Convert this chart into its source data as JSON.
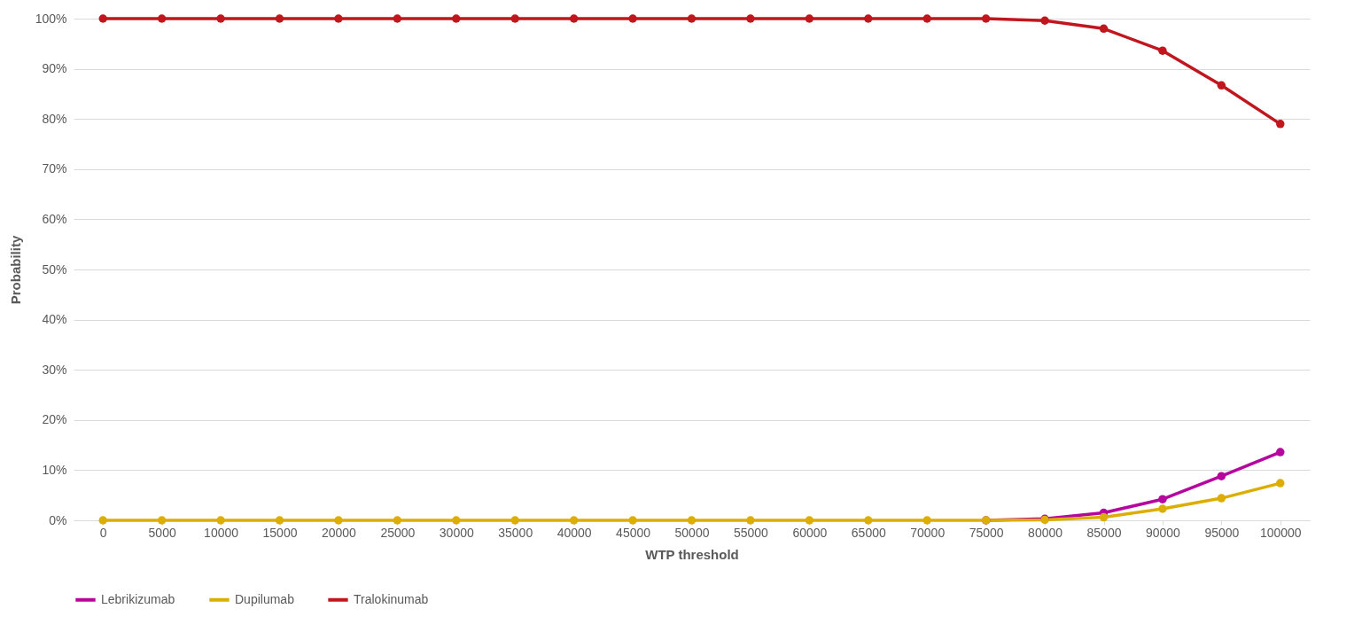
{
  "chart_data": {
    "type": "line",
    "xlabel": "WTP threshold",
    "ylabel": "Probability",
    "categories": [
      "0",
      "5000",
      "10000",
      "15000",
      "20000",
      "25000",
      "30000",
      "35000",
      "40000",
      "45000",
      "50000",
      "55000",
      "60000",
      "65000",
      "70000",
      "75000",
      "80000",
      "85000",
      "90000",
      "95000",
      "100000"
    ],
    "series": [
      {
        "name": "Lebrikizumab",
        "color": "#b5069e",
        "values": [
          null,
          null,
          null,
          null,
          null,
          null,
          null,
          null,
          null,
          null,
          null,
          null,
          null,
          null,
          null,
          0,
          0.3,
          1.5,
          4.2,
          8.8,
          13.6
        ]
      },
      {
        "name": "Dupilumab",
        "color": "#dcae04",
        "values": [
          0,
          0,
          0,
          0,
          0,
          0,
          0,
          0,
          0,
          0,
          0,
          0,
          0,
          0,
          0,
          0,
          0.1,
          0.6,
          2.3,
          4.4,
          7.4
        ]
      },
      {
        "name": "Tralokinumab",
        "color": "#c0171f",
        "values": [
          100,
          100,
          100,
          100,
          100,
          100,
          100,
          100,
          100,
          100,
          100,
          100,
          100,
          100,
          100,
          100,
          99.6,
          98.0,
          93.6,
          86.7,
          79.0
        ]
      }
    ],
    "ylim": [
      0,
      100
    ],
    "yticks": [
      {
        "value": 0,
        "label": "0%"
      },
      {
        "value": 10,
        "label": "10%"
      },
      {
        "value": 20,
        "label": "20%"
      },
      {
        "value": 30,
        "label": "30%"
      },
      {
        "value": 40,
        "label": "40%"
      },
      {
        "value": 50,
        "label": "50%"
      },
      {
        "value": 60,
        "label": "60%"
      },
      {
        "value": 70,
        "label": "70%"
      },
      {
        "value": 80,
        "label": "80%"
      },
      {
        "value": 90,
        "label": "90%"
      },
      {
        "value": 100,
        "label": "100%"
      }
    ],
    "grid": "y",
    "legend": "bottom",
    "marker": "circle"
  }
}
